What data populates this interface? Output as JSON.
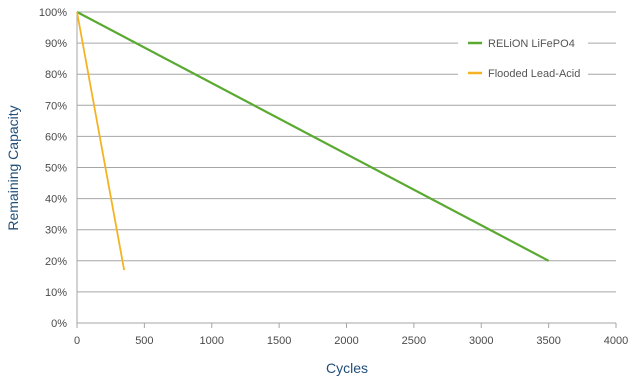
{
  "chart_data": {
    "type": "line",
    "xlabel": "Cycles",
    "ylabel": "Remaining Capacity",
    "xlim": [
      0,
      4000
    ],
    "ylim": [
      0,
      100
    ],
    "x_ticks": [
      0,
      500,
      1000,
      1500,
      2000,
      2500,
      3000,
      3500,
      4000
    ],
    "x_tick_labels": [
      "0",
      "500",
      "1000",
      "1500",
      "2000",
      "2500",
      "3000",
      "3500",
      "4000"
    ],
    "y_ticks": [
      0,
      10,
      20,
      30,
      40,
      50,
      60,
      70,
      80,
      90,
      100
    ],
    "y_tick_labels": [
      "0%",
      "10%",
      "20%",
      "30%",
      "40%",
      "50%",
      "60%",
      "70%",
      "80%",
      "90%",
      "100%"
    ],
    "grid": "horizontal",
    "legend_position": "top-right",
    "series": [
      {
        "name": "RELiON LiFePO4",
        "color": "#5aaa32",
        "x": [
          0,
          3500
        ],
        "y": [
          100,
          20
        ]
      },
      {
        "name": "Flooded Lead-Acid",
        "color": "#f5b324",
        "x": [
          0,
          350
        ],
        "y": [
          100,
          17
        ]
      }
    ]
  }
}
